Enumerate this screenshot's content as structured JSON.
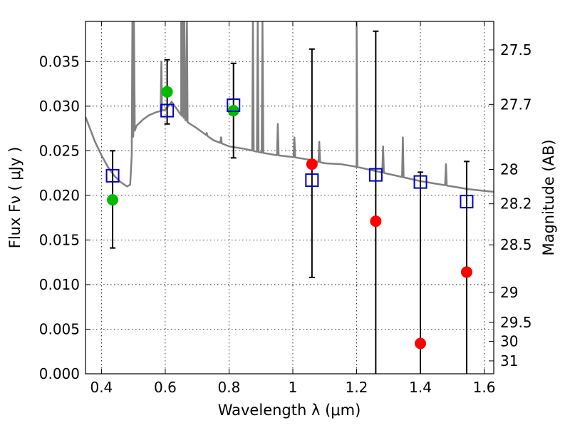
{
  "chart_data": {
    "type": "scatter",
    "xlabel": "Wavelength  λ (μm)",
    "ylabel": "Flux  Fν  ( μJy )",
    "y2label": "Magnitude (AB)",
    "xlim": [
      0.35,
      1.63
    ],
    "ylim": [
      0.0,
      0.0395
    ],
    "grid": true,
    "x_ticks": [
      0.4,
      0.6,
      0.8,
      1.0,
      1.2,
      1.4,
      1.6
    ],
    "x_tick_labels": [
      "0.4",
      "0.6",
      "0.8",
      "1",
      "1.2",
      "1.4",
      "1.6"
    ],
    "y_ticks": [
      0.0,
      0.005,
      0.01,
      0.015,
      0.02,
      0.025,
      0.03,
      0.035
    ],
    "y_tick_labels": [
      "0.000",
      "0.005",
      "0.010",
      "0.015",
      "0.020",
      "0.025",
      "0.030",
      "0.035"
    ],
    "y2_ticks": [
      27.5,
      27.7,
      28,
      28.2,
      28.5,
      29,
      29.5,
      30,
      31
    ],
    "y2_tick_labels": [
      "27.5",
      "27.7",
      "28",
      "28.2",
      "28.5",
      "29",
      "29.5",
      "30",
      "31"
    ],
    "colors": {
      "model": "#808080",
      "green": "#00bb00",
      "red": "#ff0000",
      "square": "#0000cc",
      "errorbar": "#000000"
    },
    "model_spectrum": {
      "x": [
        0.35,
        0.38,
        0.4,
        0.42,
        0.44,
        0.46,
        0.48,
        0.49,
        0.495,
        0.5,
        0.51,
        0.53,
        0.55,
        0.57,
        0.59,
        0.6,
        0.61,
        0.62,
        0.63,
        0.65,
        0.67,
        0.7,
        0.75,
        0.8,
        0.85,
        0.9,
        0.95,
        1.0,
        1.05,
        1.1,
        1.15,
        1.2,
        1.25,
        1.3,
        1.35,
        1.4,
        1.45,
        1.5,
        1.55,
        1.6,
        1.63
      ],
      "y": [
        0.0288,
        0.026,
        0.0245,
        0.0232,
        0.0222,
        0.0215,
        0.021,
        0.0212,
        0.0245,
        0.0268,
        0.0278,
        0.0285,
        0.029,
        0.0293,
        0.0295,
        0.0296,
        0.03,
        0.0305,
        0.03,
        0.029,
        0.0282,
        0.0275,
        0.0262,
        0.0255,
        0.0252,
        0.0248,
        0.0245,
        0.0243,
        0.024,
        0.0236,
        0.0235,
        0.0232,
        0.0228,
        0.0224,
        0.022,
        0.0216,
        0.0213,
        0.021,
        0.0207,
        0.0205,
        0.0204
      ],
      "emission_lines": [
        {
          "x": 0.497,
          "peak": 0.0395
        },
        {
          "x": 0.502,
          "peak": 0.0395
        },
        {
          "x": 0.588,
          "peak": 0.035
        },
        {
          "x": 0.65,
          "peak": 0.0395
        },
        {
          "x": 0.655,
          "peak": 0.0395
        },
        {
          "x": 0.66,
          "peak": 0.0395
        },
        {
          "x": 0.668,
          "peak": 0.0395
        },
        {
          "x": 0.73,
          "peak": 0.027
        },
        {
          "x": 0.775,
          "peak": 0.0265
        },
        {
          "x": 0.875,
          "peak": 0.0395
        },
        {
          "x": 0.89,
          "peak": 0.0395
        },
        {
          "x": 0.905,
          "peak": 0.0395
        },
        {
          "x": 0.953,
          "peak": 0.028
        },
        {
          "x": 1.005,
          "peak": 0.0265
        },
        {
          "x": 1.083,
          "peak": 0.026
        },
        {
          "x": 1.2,
          "peak": 0.0395
        },
        {
          "x": 1.283,
          "peak": 0.0255
        },
        {
          "x": 1.345,
          "peak": 0.0265
        },
        {
          "x": 1.48,
          "peak": 0.0235
        }
      ]
    },
    "green_points": [
      {
        "x": 0.435,
        "y": 0.0195
      },
      {
        "x": 0.606,
        "y": 0.0316
      },
      {
        "x": 0.814,
        "y": 0.0295
      }
    ],
    "red_points": [
      {
        "x": 1.06,
        "y": 0.0235
      },
      {
        "x": 1.26,
        "y": 0.0171
      },
      {
        "x": 1.4,
        "y": 0.0034
      },
      {
        "x": 1.545,
        "y": 0.0114
      }
    ],
    "squares": [
      {
        "x": 0.435,
        "y": 0.0222,
        "err_low": 0.0141,
        "err_high": 0.025
      },
      {
        "x": 0.606,
        "y": 0.0295,
        "err_low": 0.028,
        "err_high": 0.0352
      },
      {
        "x": 0.814,
        "y": 0.0301,
        "err_low": 0.0242,
        "err_high": 0.0348
      },
      {
        "x": 1.06,
        "y": 0.0217,
        "err_low": 0.0108,
        "err_high": 0.0364
      },
      {
        "x": 1.26,
        "y": 0.0223,
        "err_low": 0.0,
        "err_high": 0.0384
      },
      {
        "x": 1.4,
        "y": 0.0215,
        "err_low": 0.0,
        "err_high": 0.0226
      },
      {
        "x": 1.545,
        "y": 0.0193,
        "err_low": 0.0,
        "err_high": 0.0238
      }
    ]
  }
}
